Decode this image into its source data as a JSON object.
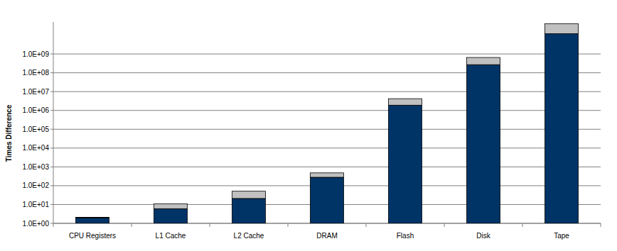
{
  "chart_data": {
    "type": "bar",
    "stacked": true,
    "log": "y",
    "grid": true,
    "y_label": "Times Difference",
    "categories": [
      "CPU Registers",
      "L1 Cache",
      "L2 Cache",
      "DRAM",
      "Flash",
      "Disk",
      "Tape"
    ],
    "series": [
      {
        "color": "#003366",
        "values": [
          1,
          5,
          20,
          280,
          1900000,
          270000000,
          12000000000
        ]
      },
      {
        "color": "#c0c0c0",
        "values": [
          0.1,
          5,
          30,
          200,
          2300000,
          380000000,
          28000000000
        ]
      }
    ],
    "ylim": [
      1,
      50000000000
    ],
    "yticks": [
      {
        "value": 1,
        "label": "1.0E+00"
      },
      {
        "value": 10,
        "label": "1.0E+01"
      },
      {
        "value": 100,
        "label": "1.0E+02"
      },
      {
        "value": 1000,
        "label": "1.0E+03"
      },
      {
        "value": 10000,
        "label": "1.0E+04"
      },
      {
        "value": 100000,
        "label": "1.0E+05"
      },
      {
        "value": 1000000,
        "label": "1.0E+06"
      },
      {
        "value": 10000000,
        "label": "1.0E+07"
      },
      {
        "value": 100000000,
        "label": "1.0E+08"
      },
      {
        "value": 1000000000,
        "label": "1.0E+09"
      }
    ]
  }
}
